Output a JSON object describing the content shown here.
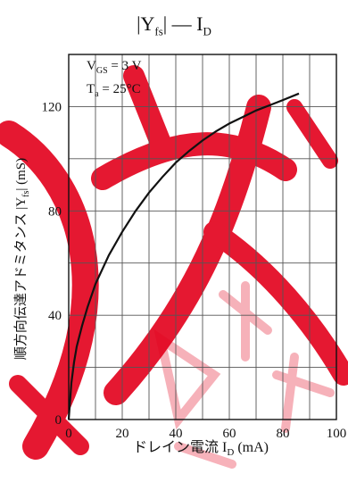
{
  "chart_data": {
    "type": "line",
    "title": {
      "prefix": "|Y",
      "prefix_sub": "fs",
      "middle": "| — I",
      "middle_sub": "D"
    },
    "conditions": [
      {
        "main": "V",
        "sub": "GS",
        "rest": " = 3 V"
      },
      {
        "main": "T",
        "sub": "a",
        "rest": " = 25°C"
      }
    ],
    "xlabel": {
      "text": "ドレイン電流  I",
      "sub": "D",
      "unit": " (mA)"
    },
    "ylabel": {
      "text": "順方向伝達アドミタンス  |Y",
      "sub": "fs",
      "unit": "|  (mS)"
    },
    "x_ticks": [
      "0",
      "20",
      "40",
      "60",
      "80",
      "100"
    ],
    "y_ticks": [
      "0",
      "40",
      "80",
      "120"
    ],
    "xlim": [
      0,
      100
    ],
    "ylim": [
      0,
      140
    ],
    "grid": true,
    "series": [
      {
        "color": "#111111",
        "x": [
          0,
          0.5,
          1,
          2,
          3,
          5,
          7,
          10,
          15,
          20,
          25,
          30,
          35,
          40,
          45,
          50,
          55,
          60,
          65,
          70,
          75,
          80,
          86
        ],
        "y": [
          0,
          7,
          14,
          22,
          28,
          36,
          43,
          52,
          63,
          72,
          80,
          87,
          93,
          98.5,
          103,
          107,
          110.5,
          113.5,
          116,
          118.5,
          120.5,
          122.5,
          125
        ]
      }
    ]
  },
  "watermark_color": "#e3001b"
}
